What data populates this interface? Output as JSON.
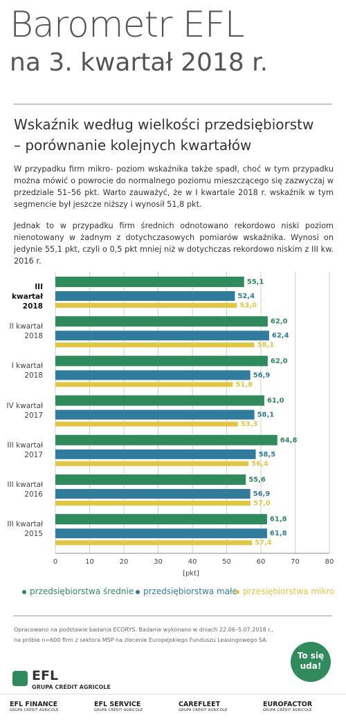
{
  "header": {
    "title": "Barometr EFL",
    "subtitle": "na 3. kwartał 2018 r."
  },
  "section": {
    "heading_1": "Wskaźnik według wielkości przedsiębiorstw",
    "heading_2": "– porównanie kolejnych kwartałów",
    "paragraphs": [
      "W przypadku firm mikro- poziom wskaźnika także spadł, choć w tym przypadku można mówić o powrocie do normalnego poziomu mieszczącego się zazwyczaj w przedziale 51–56 pkt. Warto zauważyć, że w I kwartale 2018 r. wskaźnik w tym segmencie był jeszcze niższy i wynosił 51,8 pkt.",
      "Jednak to w przypadku firm średnich odnotowano rekordowo niski poziom nienotowany w żadnym z dotychczasowych pomiarów wskaźnika. Wynosi on jedynie 55,1 pkt, czyli o 0,5 pkt mniej niż w dotychczas rekordowo niskim z III kw. 2016 r."
    ]
  },
  "chart_data": {
    "type": "hbar",
    "x_label": "[pkt]",
    "categories": [
      "III kwartał\n2018",
      "II kwartał\n2018",
      "I kwartał\n2018",
      "IV kwartał\n2017",
      "III kwartał\n2017",
      "III kwartał\n2016",
      "III kwartał\n2015"
    ],
    "series": [
      {
        "name": "przedsiębiorstwa średnie",
        "color": "#2f8a5c",
        "values": [
          55.1,
          62.0,
          62.0,
          61.0,
          64.8,
          55.6,
          61.8
        ],
        "value_labels": [
          "55,1",
          "62,0",
          "62,0",
          "61,0",
          "64,8",
          "55,6",
          "61,8"
        ]
      },
      {
        "name": "przedsiębiorstwa małe",
        "color": "#2f7c9c",
        "values": [
          52.4,
          62.4,
          56.9,
          58.1,
          58.5,
          56.9,
          61.8
        ],
        "value_labels": [
          "52,4",
          "62,4",
          "56,9",
          "58,1",
          "58,5",
          "56,9",
          "61,8"
        ]
      },
      {
        "name": "przesiębiorstwa mikro",
        "color": "#e3c63f",
        "values": [
          53.0,
          58.1,
          51.8,
          53.3,
          56.4,
          57.0,
          57.4
        ],
        "value_labels": [
          "53,0",
          "58,1",
          "51,8",
          "53,3",
          "56,4",
          "57,0",
          "57,4"
        ]
      }
    ],
    "xlim": [
      0,
      80
    ],
    "xticks": [
      0,
      10,
      20,
      30,
      40,
      50,
      60,
      70,
      80
    ],
    "grid": true
  },
  "footer": {
    "note_1": "Opracowano na podstawie badania ECORYS. Badanie wykonano w dniach 22.06–5.07.2018 r.,",
    "note_2": "na próbie n=600 firm z sektora MSP na zlecenie Europejskiego Funduszu Leasingowego SA.",
    "badge_1": "To się",
    "badge_2": "uda!",
    "brand": "EFL",
    "brand_group": "GRUPA CRÉDIT AGRICOLE",
    "logos": [
      {
        "name": "EFL FINANCE",
        "group": "GRUPA CRÉDIT AGRICOLE"
      },
      {
        "name": "EFL SERVICE",
        "group": "GRUPA CRÉDIT AGRICOLE"
      },
      {
        "name": "CAREFLEET",
        "group": "GRUPA CRÉDIT AGRICOLE"
      },
      {
        "name": "EUROFACTOR",
        "group": "GRUPA CRÉDIT AGRICOLE"
      }
    ]
  }
}
